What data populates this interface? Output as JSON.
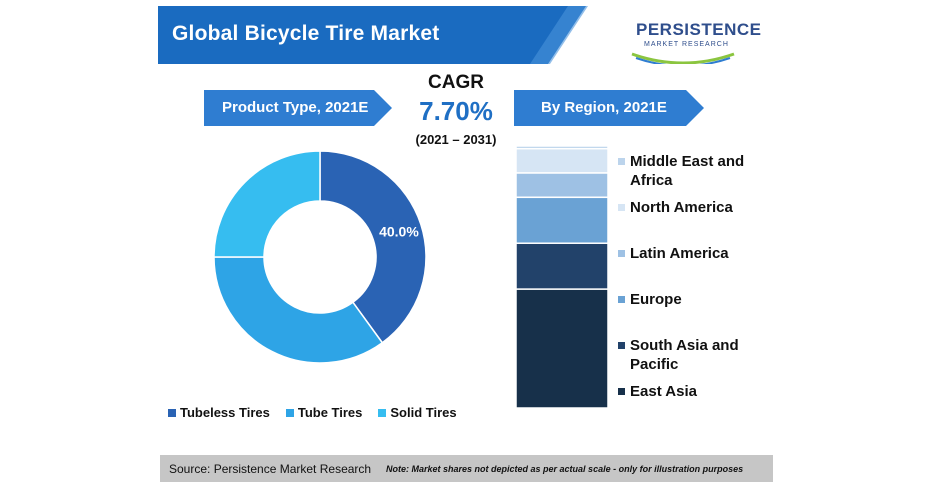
{
  "title": "Global Bicycle Tire Market",
  "logo": {
    "name": "PERSISTENCE",
    "sub": "MARKET RESEARCH"
  },
  "left_header": "Product Type, 2021E",
  "right_header": "By Region, 2021E",
  "cagr": {
    "label": "CAGR",
    "value": "7.70%",
    "period": "(2021 – 2031)"
  },
  "colors": {
    "banner": "#1a6bc0",
    "pill": "#2f7dd1",
    "tubeless": "#2a63b4",
    "tube": "#2ea4e6",
    "solid": "#36bdf0",
    "east_asia": "#17304a",
    "south_asia": "#22426a",
    "europe": "#6aa2d4",
    "latin_america": "#9ec1e4",
    "north_america": "#d6e5f4",
    "mea": "#bcd4ec"
  },
  "chart_data": [
    {
      "type": "pie",
      "title": "Product Type, 2021E",
      "categories": [
        "Tubeless Tires",
        "Tube Tires",
        "Solid Tires"
      ],
      "values": [
        40,
        35,
        25
      ],
      "data_labels": [
        "40.0%",
        "",
        ""
      ],
      "legend": "bottom"
    },
    {
      "type": "bar",
      "stacked": true,
      "title": "By Region, 2021E",
      "categories": [
        "Middle East and Africa",
        "North America",
        "Latin America",
        "Europe",
        "South Asia and Pacific",
        "East Asia"
      ],
      "values": [
        1,
        9,
        9,
        17,
        17,
        44
      ],
      "legend": "right"
    }
  ],
  "footer": {
    "source": "Source: Persistence Market Research",
    "note": "Note: Market shares not depicted as per actual scale - only for illustration purposes"
  }
}
